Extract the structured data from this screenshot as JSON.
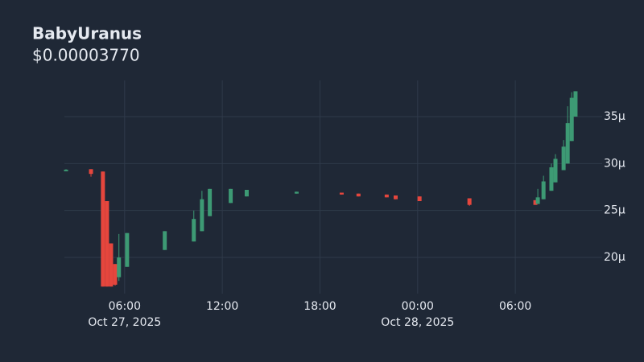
{
  "chart_data": {
    "type": "candlestick",
    "title": "BabyUranus",
    "subtitle": "$0.00003770",
    "up_color": "#3d9a74",
    "down_color": "#e5463d",
    "grid": true,
    "xlim": [
      "2025-10-27T02:18",
      "2025-10-28T09:57"
    ],
    "xticks": [
      {
        "value": "2025-10-27T06:00",
        "label": "06:00"
      },
      {
        "value": "2025-10-27T12:00",
        "label": "12:00"
      },
      {
        "value": "2025-10-27T18:00",
        "label": "18:00"
      },
      {
        "value": "2025-10-28T00:00",
        "label": "00:00"
      },
      {
        "value": "2025-10-28T06:00",
        "label": "06:00"
      }
    ],
    "xdates": [
      {
        "value": "2025-10-27T06:00",
        "label": "Oct 27, 2025"
      },
      {
        "value": "2025-10-28T00:00",
        "label": "Oct 28, 2025"
      }
    ],
    "ylim": [
      16.15,
      38.85
    ],
    "yticks": [
      {
        "value": 20,
        "label": "20µ"
      },
      {
        "value": 25,
        "label": "25µ"
      },
      {
        "value": 30,
        "label": "30µ"
      },
      {
        "value": 35,
        "label": "35µ"
      }
    ],
    "candles": [
      {
        "x": "2025-10-27T02:24",
        "open": 29.3,
        "high": 29.4,
        "low": 29.25,
        "close": 29.35
      },
      {
        "x": "2025-10-27T03:56",
        "open": 29.4,
        "high": 29.4,
        "low": 28.6,
        "close": 28.9
      },
      {
        "x": "2025-10-27T04:40",
        "open": 29.15,
        "high": 29.15,
        "low": 16.9,
        "close": 16.9
      },
      {
        "x": "2025-10-27T04:55",
        "open": 26.0,
        "high": 26.0,
        "low": 16.9,
        "close": 16.9
      },
      {
        "x": "2025-10-27T05:10",
        "open": 21.5,
        "high": 21.5,
        "low": 16.9,
        "close": 16.9
      },
      {
        "x": "2025-10-27T05:25",
        "open": 19.3,
        "high": 19.3,
        "low": 17.0,
        "close": 17.1
      },
      {
        "x": "2025-10-27T05:39",
        "open": 17.9,
        "high": 22.5,
        "low": 17.5,
        "close": 20.0
      },
      {
        "x": "2025-10-27T06:09",
        "open": 19.0,
        "high": 22.6,
        "low": 19.0,
        "close": 22.6
      },
      {
        "x": "2025-10-27T08:28",
        "open": 20.8,
        "high": 22.8,
        "low": 20.8,
        "close": 22.8
      },
      {
        "x": "2025-10-27T10:15",
        "open": 21.7,
        "high": 25.0,
        "low": 21.7,
        "close": 24.1
      },
      {
        "x": "2025-10-27T10:45",
        "open": 22.8,
        "high": 27.1,
        "low": 22.8,
        "close": 26.2
      },
      {
        "x": "2025-10-27T11:14",
        "open": 24.4,
        "high": 27.3,
        "low": 24.4,
        "close": 27.3
      },
      {
        "x": "2025-10-27T12:31",
        "open": 25.8,
        "high": 27.3,
        "low": 25.8,
        "close": 27.3
      },
      {
        "x": "2025-10-27T13:30",
        "open": 26.5,
        "high": 27.2,
        "low": 26.5,
        "close": 27.2
      },
      {
        "x": "2025-10-27T16:34",
        "open": 26.8,
        "high": 27.0,
        "low": 26.8,
        "close": 27.0
      },
      {
        "x": "2025-10-27T19:20",
        "open": 26.9,
        "high": 26.9,
        "low": 26.7,
        "close": 26.7
      },
      {
        "x": "2025-10-27T20:22",
        "open": 26.8,
        "high": 26.8,
        "low": 26.5,
        "close": 26.5
      },
      {
        "x": "2025-10-27T22:06",
        "open": 26.7,
        "high": 26.7,
        "low": 26.4,
        "close": 26.4
      },
      {
        "x": "2025-10-27T22:39",
        "open": 26.6,
        "high": 26.6,
        "low": 26.2,
        "close": 26.2
      },
      {
        "x": "2025-10-28T00:07",
        "open": 26.5,
        "high": 26.5,
        "low": 26.0,
        "close": 26.0
      },
      {
        "x": "2025-10-28T03:11",
        "open": 26.3,
        "high": 26.3,
        "low": 25.5,
        "close": 25.6
      },
      {
        "x": "2025-10-28T07:14",
        "open": 26.1,
        "high": 26.1,
        "low": 25.6,
        "close": 25.6
      },
      {
        "x": "2025-10-28T07:23",
        "open": 25.7,
        "high": 27.3,
        "low": 25.7,
        "close": 26.4
      },
      {
        "x": "2025-10-28T07:44",
        "open": 26.2,
        "high": 28.7,
        "low": 26.2,
        "close": 28.1
      },
      {
        "x": "2025-10-28T08:13",
        "open": 27.1,
        "high": 30.0,
        "low": 27.1,
        "close": 29.6
      },
      {
        "x": "2025-10-28T08:28",
        "open": 28.0,
        "high": 31.0,
        "low": 28.0,
        "close": 30.5
      },
      {
        "x": "2025-10-28T08:58",
        "open": 29.3,
        "high": 32.5,
        "low": 29.3,
        "close": 31.8
      },
      {
        "x": "2025-10-28T09:13",
        "open": 30.0,
        "high": 36.1,
        "low": 30.0,
        "close": 34.3
      },
      {
        "x": "2025-10-28T09:28",
        "open": 32.4,
        "high": 37.6,
        "low": 32.4,
        "close": 37.0
      },
      {
        "x": "2025-10-28T09:42",
        "open": 35.0,
        "high": 37.7,
        "low": 35.0,
        "close": 37.7
      }
    ]
  }
}
